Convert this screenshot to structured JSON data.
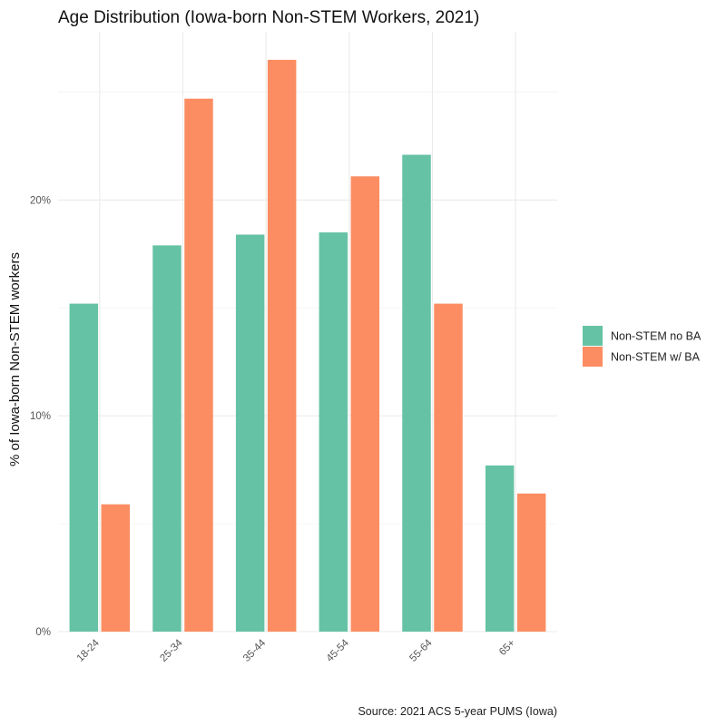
{
  "chart_data": {
    "type": "bar",
    "title": "Age Distribution (Iowa-born Non-STEM Workers, 2021)",
    "xlabel": "",
    "ylabel": "% of Iowa-born Non-STEM workers",
    "caption": "Source: 2021 ACS 5-year PUMS (Iowa)",
    "categories": [
      "18-24",
      "25-34",
      "35-44",
      "45-54",
      "55-64",
      "65+"
    ],
    "series": [
      {
        "name": "Non-STEM no BA",
        "color": "#66c2a5",
        "values": [
          15.2,
          17.9,
          18.4,
          18.5,
          22.1,
          7.7
        ]
      },
      {
        "name": "Non-STEM w/ BA",
        "color": "#fc8d62",
        "values": [
          5.9,
          24.7,
          26.5,
          21.1,
          15.2,
          6.4
        ]
      }
    ],
    "ylim": [
      0,
      27.8
    ],
    "yticks": [
      0,
      10,
      20
    ],
    "ytick_labels": [
      "0%",
      "10%",
      "20%"
    ],
    "grid": true,
    "legend_position": "right"
  }
}
